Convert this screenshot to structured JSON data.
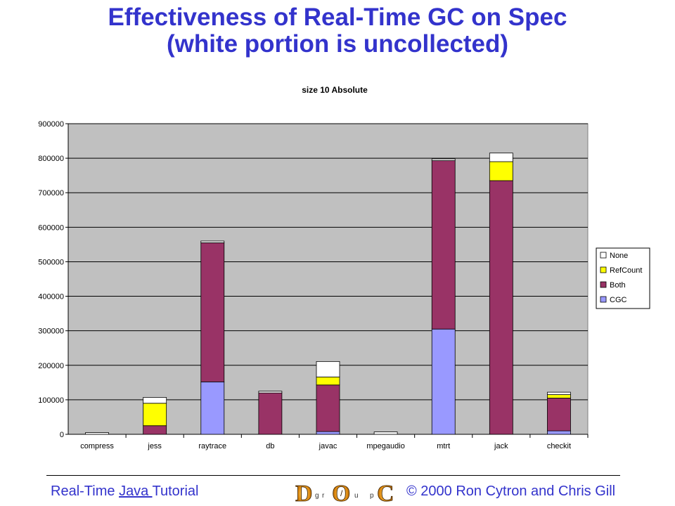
{
  "slide": {
    "title_line1": "Effectiveness of Real-Time GC on Spec",
    "title_line2": "(white portion is uncollected)"
  },
  "footer": {
    "left_text_1": "Real-Time ",
    "left_link": "Java ",
    "left_text_2": "Tutorial",
    "copyright": "© 2000 Ron Cytron and Chris Gill",
    "logo_letters": [
      "D",
      "O",
      "C"
    ],
    "logo_small_letters": [
      "g",
      "r",
      "/",
      "u",
      "p"
    ]
  },
  "colors": {
    "title": "#3333cc",
    "plot_background": "#c0c0c0",
    "CGC": "#9999ff",
    "Both": "#993366",
    "RefCount": "#ffff00",
    "None": "#ffffff"
  },
  "chart_data": {
    "type": "bar",
    "stacked": true,
    "title": "size 10 Absolute",
    "xlabel": "",
    "ylabel": "",
    "ylim": [
      0,
      900000
    ],
    "yticks": [
      "0",
      "100000",
      "200000",
      "300000",
      "400000",
      "500000",
      "600000",
      "700000",
      "800000",
      "900000"
    ],
    "grid": true,
    "legend_position": "right",
    "categories": [
      "compress",
      "jess",
      "raytrace",
      "db",
      "javac",
      "mpegaudio",
      "mtrt",
      "jack",
      "checkit"
    ],
    "series": [
      {
        "name": "CGC",
        "values": [
          0,
          0,
          152000,
          0,
          8000,
          0,
          305000,
          0,
          10000
        ]
      },
      {
        "name": "Both",
        "values": [
          0,
          25000,
          403000,
          120000,
          135000,
          0,
          488000,
          735000,
          95000
        ]
      },
      {
        "name": "RefCount",
        "values": [
          0,
          65000,
          0,
          0,
          23000,
          0,
          0,
          55000,
          10000
        ]
      },
      {
        "name": "None",
        "values": [
          5000,
          17000,
          5000,
          5000,
          45000,
          7000,
          5000,
          25000,
          7000
        ]
      }
    ]
  }
}
